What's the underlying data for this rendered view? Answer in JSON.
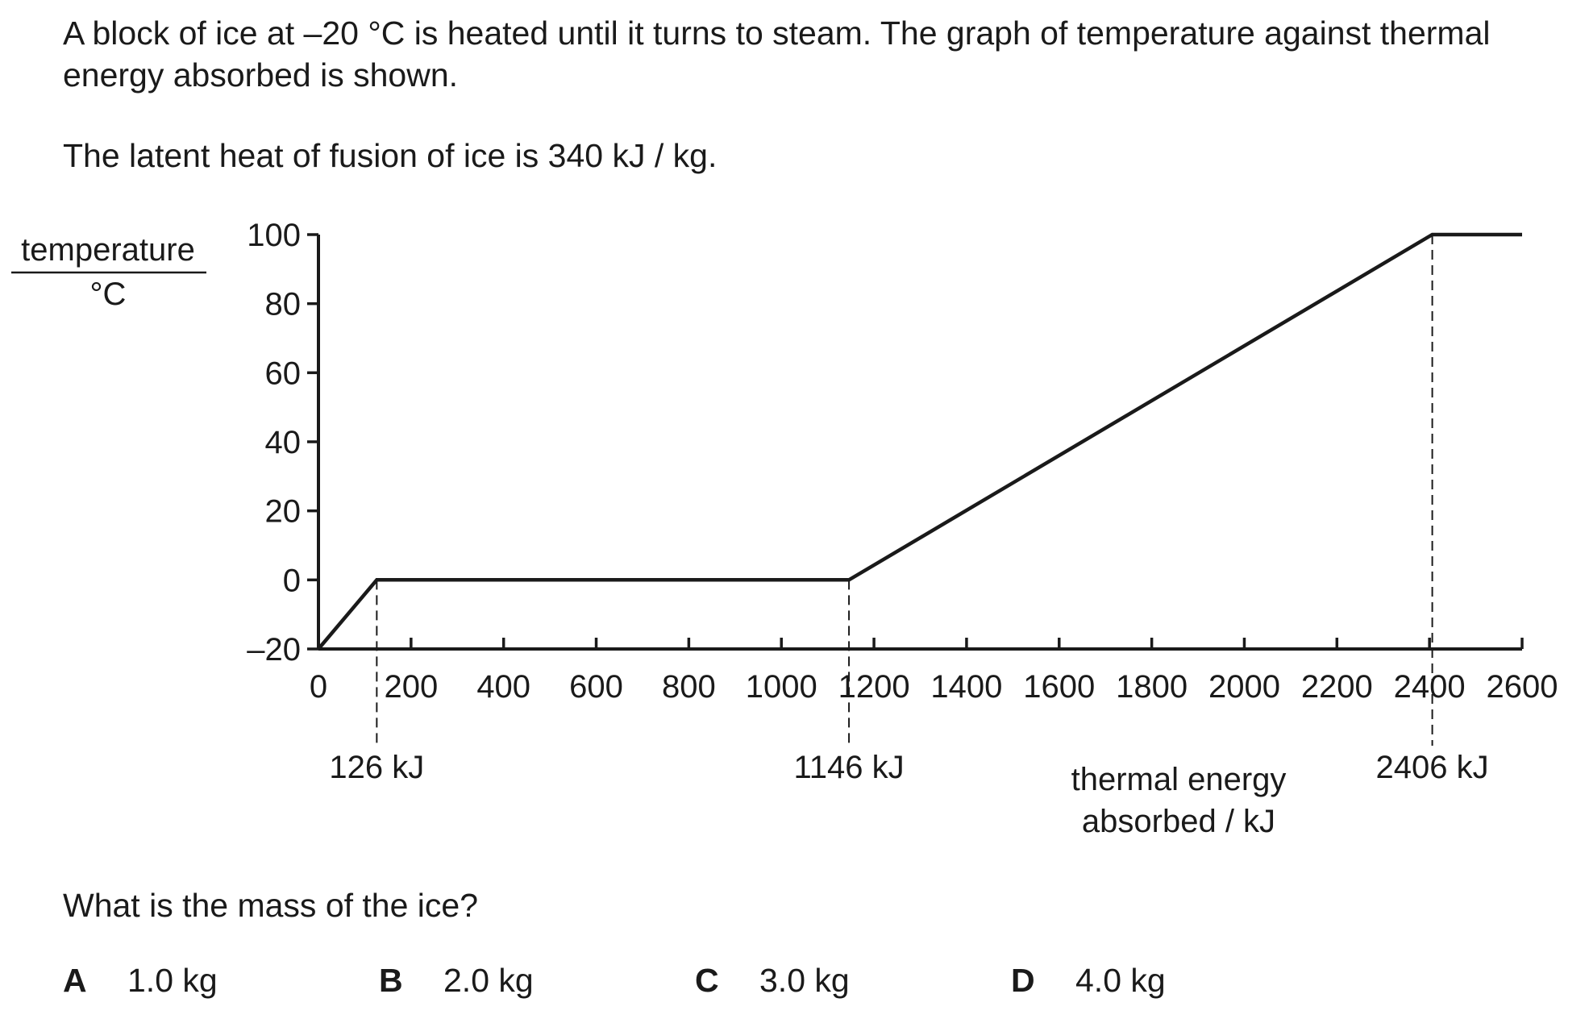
{
  "question": {
    "intro_line1": "A block of ice at –20 °C is heated until it turns to steam. The graph of temperature against thermal",
    "intro_line2": "energy absorbed is shown.",
    "latent_heat": "The latent heat of fusion of ice is 340 kJ / kg.",
    "prompt": "What is the mass of the ice?",
    "options": [
      {
        "letter": "A",
        "text": "1.0 kg"
      },
      {
        "letter": "B",
        "text": "2.0 kg"
      },
      {
        "letter": "C",
        "text": "3.0 kg"
      },
      {
        "letter": "D",
        "text": "4.0 kg"
      }
    ]
  },
  "chart_data": {
    "type": "line",
    "ylabel_top": "temperature",
    "ylabel_bottom": "°C",
    "xlabel_line1": "thermal energy",
    "xlabel_line2": "absorbed / kJ",
    "xlim": [
      0,
      2600
    ],
    "ylim": [
      -20,
      100
    ],
    "x_ticks": [
      0,
      200,
      400,
      600,
      800,
      1000,
      1200,
      1400,
      1600,
      1800,
      2000,
      2200,
      2400,
      2600
    ],
    "x_tick_labels": [
      "0",
      "200",
      "400",
      "600",
      "800",
      "1000",
      "1200",
      "1400",
      "1600",
      "1800",
      "2000",
      "2200",
      "2400",
      "2600"
    ],
    "y_ticks": [
      -20,
      0,
      20,
      40,
      60,
      80,
      100
    ],
    "y_tick_labels": [
      "–20",
      "0",
      "20",
      "40",
      "60",
      "80",
      "100"
    ],
    "series": [
      {
        "x": [
          0,
          126,
          1146,
          2406,
          2600
        ],
        "y": [
          -20,
          0,
          0,
          100,
          100
        ]
      }
    ],
    "annotations": [
      {
        "x": 126,
        "label": "126 kJ"
      },
      {
        "x": 1146,
        "label": "1146 kJ"
      },
      {
        "x": 2406,
        "label": "2406 kJ"
      }
    ],
    "grid": false
  }
}
